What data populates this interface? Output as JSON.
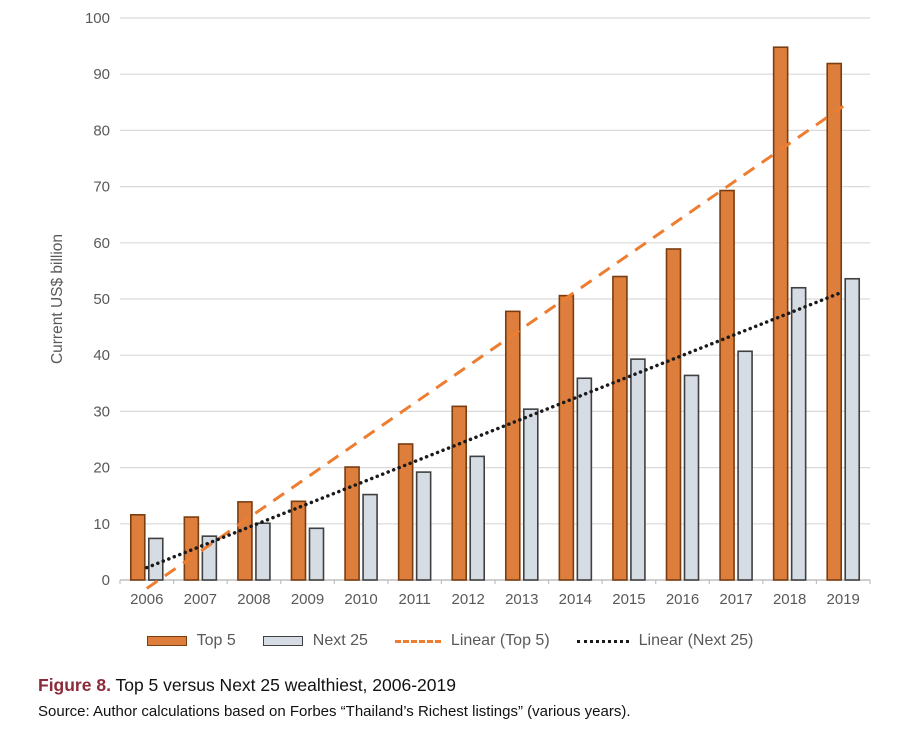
{
  "figure": {
    "caption_label": "Figure 8.",
    "caption_text": " Top 5 versus Next 25 wealthiest, 2006-2019",
    "source": "Source: Author calculations based on Forbes “Thailand’s Richest listings” (various years)."
  },
  "chart_data": {
    "type": "bar",
    "title": "",
    "xlabel": "",
    "ylabel": "Current US$ billion",
    "ylim": [
      0,
      100
    ],
    "yticks": [
      0,
      10,
      20,
      30,
      40,
      50,
      60,
      70,
      80,
      90,
      100
    ],
    "grid": true,
    "legend_position": "bottom",
    "categories": [
      "2006",
      "2007",
      "2008",
      "2009",
      "2010",
      "2011",
      "2012",
      "2013",
      "2014",
      "2015",
      "2016",
      "2017",
      "2018",
      "2019"
    ],
    "series": [
      {
        "name": "Top 5",
        "color": "#DE7E3C",
        "border": "#7A3D10",
        "values": [
          11.6,
          11.2,
          13.9,
          14.0,
          20.1,
          24.2,
          30.9,
          47.8,
          50.6,
          54.0,
          58.9,
          69.3,
          94.8,
          91.9
        ]
      },
      {
        "name": "Next 25",
        "color": "#D6DCE4",
        "border": "#404040",
        "values": [
          7.4,
          7.8,
          10.1,
          9.2,
          15.2,
          19.2,
          22.0,
          30.4,
          35.9,
          39.3,
          36.4,
          40.7,
          52.0,
          53.6
        ]
      }
    ],
    "trendlines": [
      {
        "name": "Linear (Top 5)",
        "style": "dashed",
        "color": "#ED7D31",
        "start_value": -1.5,
        "end_value": 84.3
      },
      {
        "name": "Linear (Next 25)",
        "style": "dotted",
        "color": "#1A1A1A",
        "start_value": 2.2,
        "end_value": 51.3
      }
    ]
  },
  "style_colors": {
    "gridline": "#D9D9D9",
    "axis_line": "#BFBFBF",
    "tick_label": "#595959",
    "caption_accent": "#8C2A39"
  }
}
